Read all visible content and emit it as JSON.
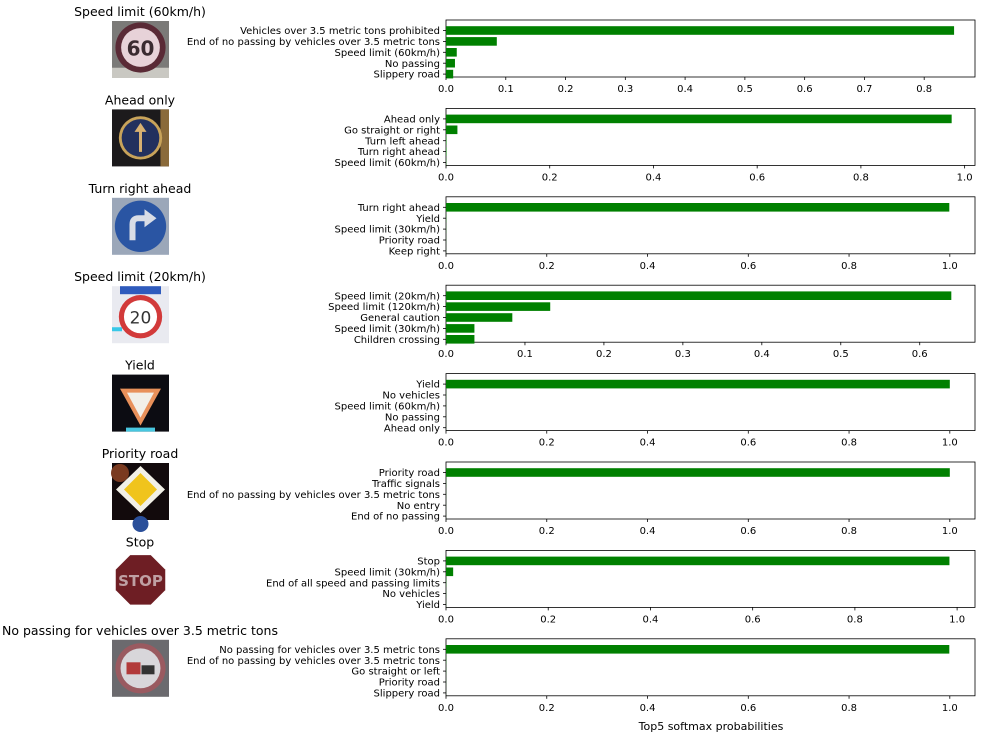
{
  "figure": {
    "xlabel": "Top5 softmax probabilities",
    "bar_color": "#008000"
  },
  "chart_data": [
    {
      "type": "bar",
      "orientation": "horizontal",
      "title": "Speed limit (60km/h)",
      "sign_icon": "speed-limit-60-sign",
      "categories": [
        "Vehicles over 3.5 metric tons prohibited",
        "End of no passing by vehicles over 3.5 metric tons",
        "Speed limit (60km/h)",
        "No passing",
        "Slippery road"
      ],
      "values": [
        0.85,
        0.085,
        0.018,
        0.015,
        0.012
      ],
      "xlim": [
        0,
        0.885
      ],
      "xticks": [
        "0.0",
        "0.1",
        "0.2",
        "0.3",
        "0.4",
        "0.5",
        "0.6",
        "0.7",
        "0.8"
      ],
      "xtick_values": [
        0,
        0.1,
        0.2,
        0.3,
        0.4,
        0.5,
        0.6,
        0.7,
        0.8
      ]
    },
    {
      "type": "bar",
      "orientation": "horizontal",
      "title": "Ahead only",
      "sign_icon": "ahead-only-sign",
      "categories": [
        "Ahead only",
        "Go straight or right",
        "Turn left ahead",
        "Turn right ahead",
        "Speed limit (60km/h)"
      ],
      "values": [
        0.975,
        0.022,
        0.001,
        0.001,
        0.0005
      ],
      "xlim": [
        0,
        1.02
      ],
      "xticks": [
        "0.0",
        "0.2",
        "0.4",
        "0.6",
        "0.8",
        "1.0"
      ],
      "xtick_values": [
        0,
        0.2,
        0.4,
        0.6,
        0.8,
        1.0
      ]
    },
    {
      "type": "bar",
      "orientation": "horizontal",
      "title": "Turn right ahead",
      "sign_icon": "turn-right-ahead-sign",
      "categories": [
        "Turn right ahead",
        "Yield",
        "Speed limit (30km/h)",
        "Priority road",
        "Keep right"
      ],
      "values": [
        0.999,
        0.0005,
        0.0003,
        0.0002,
        0.0001
      ],
      "xlim": [
        0,
        1.05
      ],
      "xticks": [
        "0.0",
        "0.2",
        "0.4",
        "0.6",
        "0.8",
        "1.0"
      ],
      "xtick_values": [
        0,
        0.2,
        0.4,
        0.6,
        0.8,
        1.0
      ]
    },
    {
      "type": "bar",
      "orientation": "horizontal",
      "title": "Speed limit (20km/h)",
      "sign_icon": "speed-limit-20-sign",
      "categories": [
        "Speed limit (20km/h)",
        "Speed limit (120km/h)",
        "General caution",
        "Speed limit (30km/h)",
        "Children crossing"
      ],
      "values": [
        0.64,
        0.132,
        0.084,
        0.036,
        0.036
      ],
      "xlim": [
        0,
        0.67
      ],
      "xticks": [
        "0.0",
        "0.1",
        "0.2",
        "0.3",
        "0.4",
        "0.5",
        "0.6"
      ],
      "xtick_values": [
        0,
        0.1,
        0.2,
        0.3,
        0.4,
        0.5,
        0.6
      ]
    },
    {
      "type": "bar",
      "orientation": "horizontal",
      "title": "Yield",
      "sign_icon": "yield-sign",
      "categories": [
        "Yield",
        "No vehicles",
        "Speed limit (60km/h)",
        "No passing",
        "Ahead only"
      ],
      "values": [
        1.0,
        0.0003,
        0.0002,
        0.0001,
        0.0001
      ],
      "xlim": [
        0,
        1.05
      ],
      "xticks": [
        "0.0",
        "0.2",
        "0.4",
        "0.6",
        "0.8",
        "1.0"
      ],
      "xtick_values": [
        0,
        0.2,
        0.4,
        0.6,
        0.8,
        1.0
      ]
    },
    {
      "type": "bar",
      "orientation": "horizontal",
      "title": "Priority road",
      "sign_icon": "priority-road-sign",
      "categories": [
        "Priority road",
        "Traffic signals",
        "End of no passing by vehicles over 3.5 metric tons",
        "No entry",
        "End of no passing"
      ],
      "values": [
        1.0,
        0.0003,
        0.0002,
        0.0001,
        0.0001
      ],
      "xlim": [
        0,
        1.05
      ],
      "xticks": [
        "0.0",
        "0.2",
        "0.4",
        "0.6",
        "0.8",
        "1.0"
      ],
      "xtick_values": [
        0,
        0.2,
        0.4,
        0.6,
        0.8,
        1.0
      ]
    },
    {
      "type": "bar",
      "orientation": "horizontal",
      "title": "Stop",
      "sign_icon": "stop-sign",
      "categories": [
        "Stop",
        "Speed limit (30km/h)",
        "End of all speed and passing limits",
        "No vehicles",
        "Yield"
      ],
      "values": [
        0.985,
        0.014,
        0.0005,
        0.0003,
        0.0002
      ],
      "xlim": [
        0,
        1.035
      ],
      "xticks": [
        "0.0",
        "0.2",
        "0.4",
        "0.6",
        "0.8",
        "1.0"
      ],
      "xtick_values": [
        0,
        0.2,
        0.4,
        0.6,
        0.8,
        1.0
      ]
    },
    {
      "type": "bar",
      "orientation": "horizontal",
      "title": "No passing for vehicles over 3.5 metric tons",
      "sign_icon": "no-passing-trucks-sign",
      "categories": [
        "No passing for vehicles over 3.5 metric tons",
        "End of no passing by vehicles over 3.5 metric tons",
        "Go straight or left",
        "Priority road",
        "Slippery road"
      ],
      "values": [
        0.999,
        0.0005,
        0.0003,
        0.0002,
        0.0001
      ],
      "xlim": [
        0,
        1.05
      ],
      "xticks": [
        "0.0",
        "0.2",
        "0.4",
        "0.6",
        "0.8",
        "1.0"
      ],
      "xtick_values": [
        0,
        0.2,
        0.4,
        0.6,
        0.8,
        1.0
      ]
    }
  ]
}
